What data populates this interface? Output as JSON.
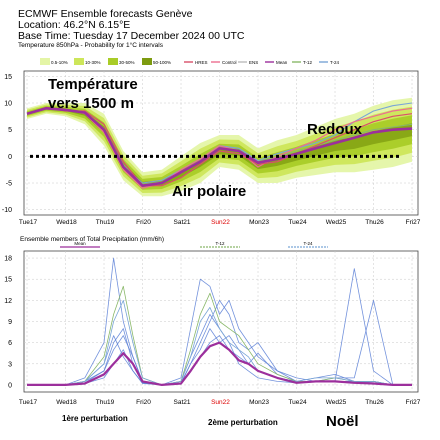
{
  "header": {
    "line1": "ECMWF Ensemble forecasts Genève",
    "line2": "Location:  46.2°N 6.15°E",
    "line3": "Base Time: Tuesday 17 December 2024 00 UTC",
    "line4": "Temperature 850hPa - Probability for 1°C intervals"
  },
  "chart_data": [
    {
      "type": "line",
      "panel": "temperature",
      "legend_entries": [
        "0.5-10%",
        "10-30%",
        "30-50%",
        "50-100%",
        "HRES",
        "Control",
        "ENS",
        "Mean",
        "T-12",
        "T-24"
      ],
      "legend_colors": {
        "prob_low": "#e4f5a6",
        "prob_mid": "#cde65a",
        "prob_high": "#a9cc27",
        "prob_max": "#7d9b10",
        "hres": "#d9506a",
        "control": "#ec6f90",
        "ens": "#bbbbbb",
        "mean": "#9c2f9c",
        "t12": "#8ab86a",
        "t24": "#7aa6d6"
      },
      "x_tick_labels": [
        "Tue17",
        "Wed18",
        "Thu19",
        "Fri20",
        "Sat21",
        "Sun22",
        "Mon23",
        "Tue24",
        "Wed25",
        "Thu26",
        "Fri27"
      ],
      "x_tick_colors": [
        "#000000",
        "#000000",
        "#000000",
        "#000000",
        "#000000",
        "#dd0000",
        "#000000",
        "#000000",
        "#000000",
        "#000000",
        "#000000"
      ],
      "ylim": [
        -11,
        16
      ],
      "yticks": [
        15,
        10,
        5,
        0,
        -5,
        -10
      ],
      "grid": true,
      "x_days": [
        0,
        0.5,
        1,
        1.5,
        2,
        2.5,
        3,
        3.5,
        4,
        4.5,
        5,
        5.5,
        6,
        6.5,
        7,
        7.5,
        8,
        8.5,
        9,
        9.5,
        10
      ],
      "series": [
        {
          "name": "Mean",
          "values": [
            8,
            9,
            8.7,
            8.2,
            5,
            -2,
            -5.5,
            -5,
            -3,
            -1,
            1.5,
            1,
            -1.2,
            -0.5,
            0.5,
            1.5,
            2.5,
            3.5,
            4.5,
            5,
            5.2
          ]
        },
        {
          "name": "HRES",
          "values": [
            8,
            9.2,
            8.5,
            8.5,
            6,
            -1,
            -5.5,
            -5.5,
            -4,
            -1.5,
            1,
            0.5,
            -1.5,
            -1,
            0.5,
            2,
            3.5,
            5,
            6.5,
            7.5,
            8
          ]
        },
        {
          "name": "Control",
          "values": [
            8,
            9,
            8.8,
            8,
            4.5,
            -2.5,
            -6,
            -5,
            -2.5,
            -0.5,
            2,
            1,
            -2,
            0,
            1.5,
            3,
            5,
            6.5,
            7.5,
            8.5,
            9
          ]
        },
        {
          "name": "T-12",
          "values": [
            8,
            9.1,
            8.8,
            8.3,
            5.2,
            -1.5,
            -5.2,
            -4.8,
            -2.8,
            -0.8,
            1.8,
            1.2,
            -1,
            0,
            1,
            2,
            3,
            4,
            5,
            5.5,
            6
          ]
        },
        {
          "name": "T-24",
          "values": [
            8,
            9,
            8.6,
            8.1,
            5,
            -1.8,
            -5,
            -4.5,
            -2.5,
            -0.5,
            2,
            1.5,
            -0.8,
            0.5,
            1.5,
            2.5,
            4,
            6.5,
            8.5,
            9.5,
            10
          ]
        }
      ],
      "band_lower": [
        7,
        8,
        7.5,
        6,
        2,
        -4.5,
        -7.5,
        -7.5,
        -6.5,
        -5,
        -2,
        -2.5,
        -5,
        -5,
        -4,
        -3.5,
        -3,
        -3,
        -2.5,
        -2,
        -1
      ],
      "band_upper": [
        9,
        10,
        10,
        10,
        8,
        1,
        -3,
        -2.5,
        0,
        2.5,
        4,
        4,
        1.5,
        3,
        4,
        5.5,
        7,
        8,
        9.5,
        10.5,
        11
      ],
      "zero_line": 0,
      "annotations": [
        "Température",
        "vers 1500 m",
        "Redoux",
        "Air polaire"
      ]
    },
    {
      "type": "line",
      "panel": "precipitation",
      "title": "Ensemble members of Total Precipitation (mm/6h)",
      "legend_entries": [
        "Mean",
        "T-12",
        "T-24"
      ],
      "x_tick_labels": [
        "Tue17",
        "Wed18",
        "Thu19",
        "Fri20",
        "Sat21",
        "Sun22",
        "Mon23",
        "Tue24",
        "Wed25",
        "Thu26",
        "Fri27"
      ],
      "ylim": [
        -1,
        19
      ],
      "yticks": [
        18,
        15,
        12,
        9,
        6,
        3,
        0
      ],
      "grid": true,
      "x_days": [
        0,
        0.5,
        1,
        1.5,
        2,
        2.25,
        2.5,
        2.75,
        3,
        3.5,
        4,
        4.25,
        4.5,
        4.75,
        5,
        5.25,
        5.5,
        5.75,
        6,
        6.5,
        7,
        7.5,
        8,
        8.5,
        9,
        9.5,
        10
      ],
      "series": [
        {
          "name": "Mean",
          "values": [
            0,
            0,
            0,
            0.2,
            1.5,
            3,
            4.5,
            3,
            0.5,
            0,
            0.2,
            2,
            4,
            5.5,
            6,
            5,
            3.5,
            3,
            2,
            1,
            0.3,
            0.5,
            0.5,
            0.3,
            0.2,
            0,
            0
          ]
        },
        {
          "name": "T-12",
          "values": [
            0,
            0,
            0,
            0.5,
            4,
            10,
            14,
            7,
            1,
            0,
            0.5,
            5,
            10,
            13,
            9,
            8,
            7,
            5,
            3,
            1.5,
            0.5,
            0.5,
            1,
            0.5,
            0.5,
            0,
            0
          ]
        },
        {
          "name": "T-24",
          "values": [
            0,
            0,
            0,
            0.5,
            3,
            9,
            12,
            6,
            1,
            0,
            0.5,
            4,
            9,
            11,
            8,
            6,
            5,
            4,
            2,
            1,
            0.5,
            1,
            1,
            0.5,
            0.5,
            0,
            0
          ]
        },
        {
          "name": "",
          "values": [
            0,
            0,
            0,
            1,
            6,
            18,
            9,
            4,
            0.5,
            0,
            1,
            8,
            15,
            14,
            10,
            12,
            8,
            6,
            4,
            2,
            1,
            0.5,
            0.5,
            0.5,
            0.3,
            0,
            0
          ]
        },
        {
          "name": "",
          "values": [
            0,
            0,
            0,
            0.5,
            2,
            6,
            8,
            3,
            0.3,
            0,
            0.2,
            3,
            6,
            9,
            12,
            10,
            6,
            5,
            6,
            2,
            0.5,
            1,
            1.5,
            0.5,
            0.5,
            0,
            0
          ]
        },
        {
          "name": "",
          "values": [
            0,
            0,
            0,
            0.2,
            1,
            3,
            5,
            2,
            0.2,
            0,
            0.2,
            2,
            4,
            6,
            7,
            5,
            4,
            3,
            4.5,
            1.5,
            0.5,
            0.5,
            0.5,
            0.5,
            0.5,
            0,
            0
          ]
        },
        {
          "name": "",
          "values": [
            0,
            0,
            0,
            0.3,
            2,
            5,
            7,
            4,
            0.5,
            0,
            0.3,
            3,
            5,
            8,
            6,
            7,
            5,
            3,
            2,
            1,
            0.5,
            0.5,
            0.5,
            16.5,
            2,
            0,
            0
          ]
        },
        {
          "name": "",
          "values": [
            0,
            0,
            0,
            0.5,
            3,
            7,
            4,
            2,
            0.3,
            0,
            0.5,
            4,
            7,
            10,
            8,
            6,
            3,
            2,
            1,
            0.5,
            0.3,
            0.5,
            1,
            1,
            12,
            0,
            0
          ]
        }
      ],
      "annotations": [
        "1ère perturbation",
        "2ème perturbation",
        "Noël"
      ]
    }
  ]
}
